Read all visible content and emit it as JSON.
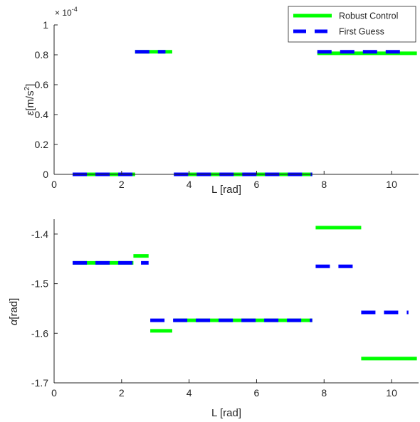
{
  "colors": {
    "robust": "#00ff00",
    "first_guess": "#0000ff",
    "axis": "#262626"
  },
  "legend": {
    "location": "top-right",
    "items": [
      "Robust Control",
      "First Guess"
    ]
  },
  "chart_data": [
    {
      "type": "line",
      "xlabel": "L [rad]",
      "ylabel_symbol": "ε",
      "ylabel_unit": "[m/s",
      "ylabel_sup": "2",
      "ylabel_close": "]",
      "exponent_base": "× 10",
      "exponent_power": "-4",
      "xlim": [
        0,
        10.8
      ],
      "ylim": [
        0,
        1
      ],
      "xticks": [
        0,
        2,
        4,
        6,
        8,
        10
      ],
      "yticks": [
        0,
        0.2,
        0.4,
        0.6,
        0.8,
        1
      ],
      "xtick_labels": [
        "0",
        "2",
        "4",
        "6",
        "8",
        "10"
      ],
      "ytick_labels": [
        "0",
        "0.2",
        "0.4",
        "0.6",
        "0.8",
        "1"
      ],
      "series": [
        {
          "name": "Robust Control",
          "style": "solid",
          "segments": [
            {
              "x": [
                0.55,
                2.4
              ],
              "y": 0
            },
            {
              "x": [
                2.4,
                3.5
              ],
              "y": 0.82
            },
            {
              "x": [
                3.55,
                7.65
              ],
              "y": 0
            },
            {
              "x": [
                7.8,
                10.75
              ],
              "y": 0.81
            }
          ]
        },
        {
          "name": "First Guess",
          "style": "dashed",
          "segments": [
            {
              "x": [
                0.55,
                2.4
              ],
              "y": 0
            },
            {
              "x": [
                2.4,
                3.3
              ],
              "y": 0.82
            },
            {
              "x": [
                3.55,
                7.65
              ],
              "y": 0
            },
            {
              "x": [
                7.8,
                10.5
              ],
              "y": 0.82
            }
          ]
        }
      ]
    },
    {
      "type": "line",
      "xlabel": "L [rad]",
      "ylabel_symbol": "α",
      "ylabel_unit": "[rad]",
      "xlim": [
        0,
        10.8
      ],
      "ylim": [
        -1.7,
        -1.37
      ],
      "xticks": [
        0,
        2,
        4,
        6,
        8,
        10
      ],
      "yticks": [
        -1.7,
        -1.6,
        -1.5,
        -1.4
      ],
      "xtick_labels": [
        "0",
        "2",
        "4",
        "6",
        "8",
        "10"
      ],
      "ytick_labels": [
        "-1.7",
        "-1.6",
        "-1.5",
        "-1.4"
      ],
      "series": [
        {
          "name": "Robust Control",
          "style": "solid",
          "segments": [
            {
              "x": [
                0.55,
                2.35
              ],
              "y": -1.458
            },
            {
              "x": [
                2.35,
                2.8
              ],
              "y": -1.444
            },
            {
              "x": [
                2.85,
                3.5
              ],
              "y": -1.595
            },
            {
              "x": [
                3.55,
                7.65
              ],
              "y": -1.574
            },
            {
              "x": [
                7.75,
                9.1
              ],
              "y": -1.387
            },
            {
              "x": [
                9.1,
                10.75
              ],
              "y": -1.651
            }
          ]
        },
        {
          "name": "First Guess",
          "style": "dashed",
          "segments": [
            {
              "x": [
                0.55,
                2.8
              ],
              "y": -1.458
            },
            {
              "x": [
                2.85,
                7.65
              ],
              "y": -1.574
            },
            {
              "x": [
                7.75,
                9.1
              ],
              "y": -1.465
            },
            {
              "x": [
                9.1,
                10.5
              ],
              "y": -1.558
            }
          ]
        }
      ]
    }
  ]
}
